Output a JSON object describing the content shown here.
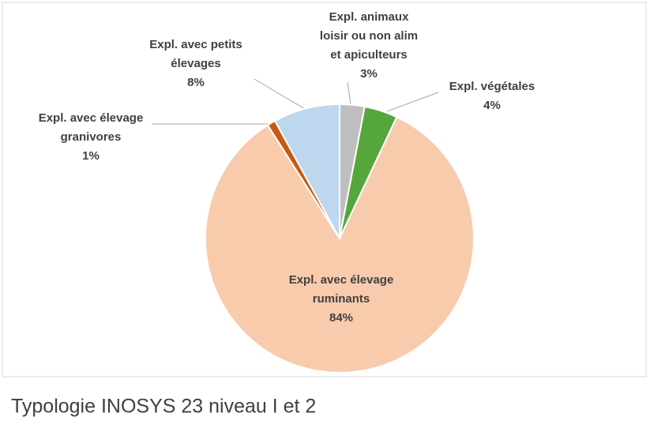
{
  "chart_data": {
    "type": "pie",
    "title": "Typologie INOSYS 23 niveau I et 2",
    "categories": [
      [
        "Expl. animaux",
        "loisir ou non alim",
        "et apiculteurs"
      ],
      [
        "Expl. végétales"
      ],
      [
        "Expl. avec élevage",
        "ruminants"
      ],
      [
        "Expl. avec élevage",
        "granivores"
      ],
      [
        "Expl. avec petits",
        "élevages"
      ]
    ],
    "values": [
      3,
      4,
      84,
      1,
      8
    ],
    "value_labels": [
      "3%",
      "4%",
      "84%",
      "1%",
      "8%"
    ],
    "colors": [
      "#bfbfbf",
      "#55a73b",
      "#f8cbad",
      "#c55a11",
      "#bdd7ee"
    ]
  }
}
